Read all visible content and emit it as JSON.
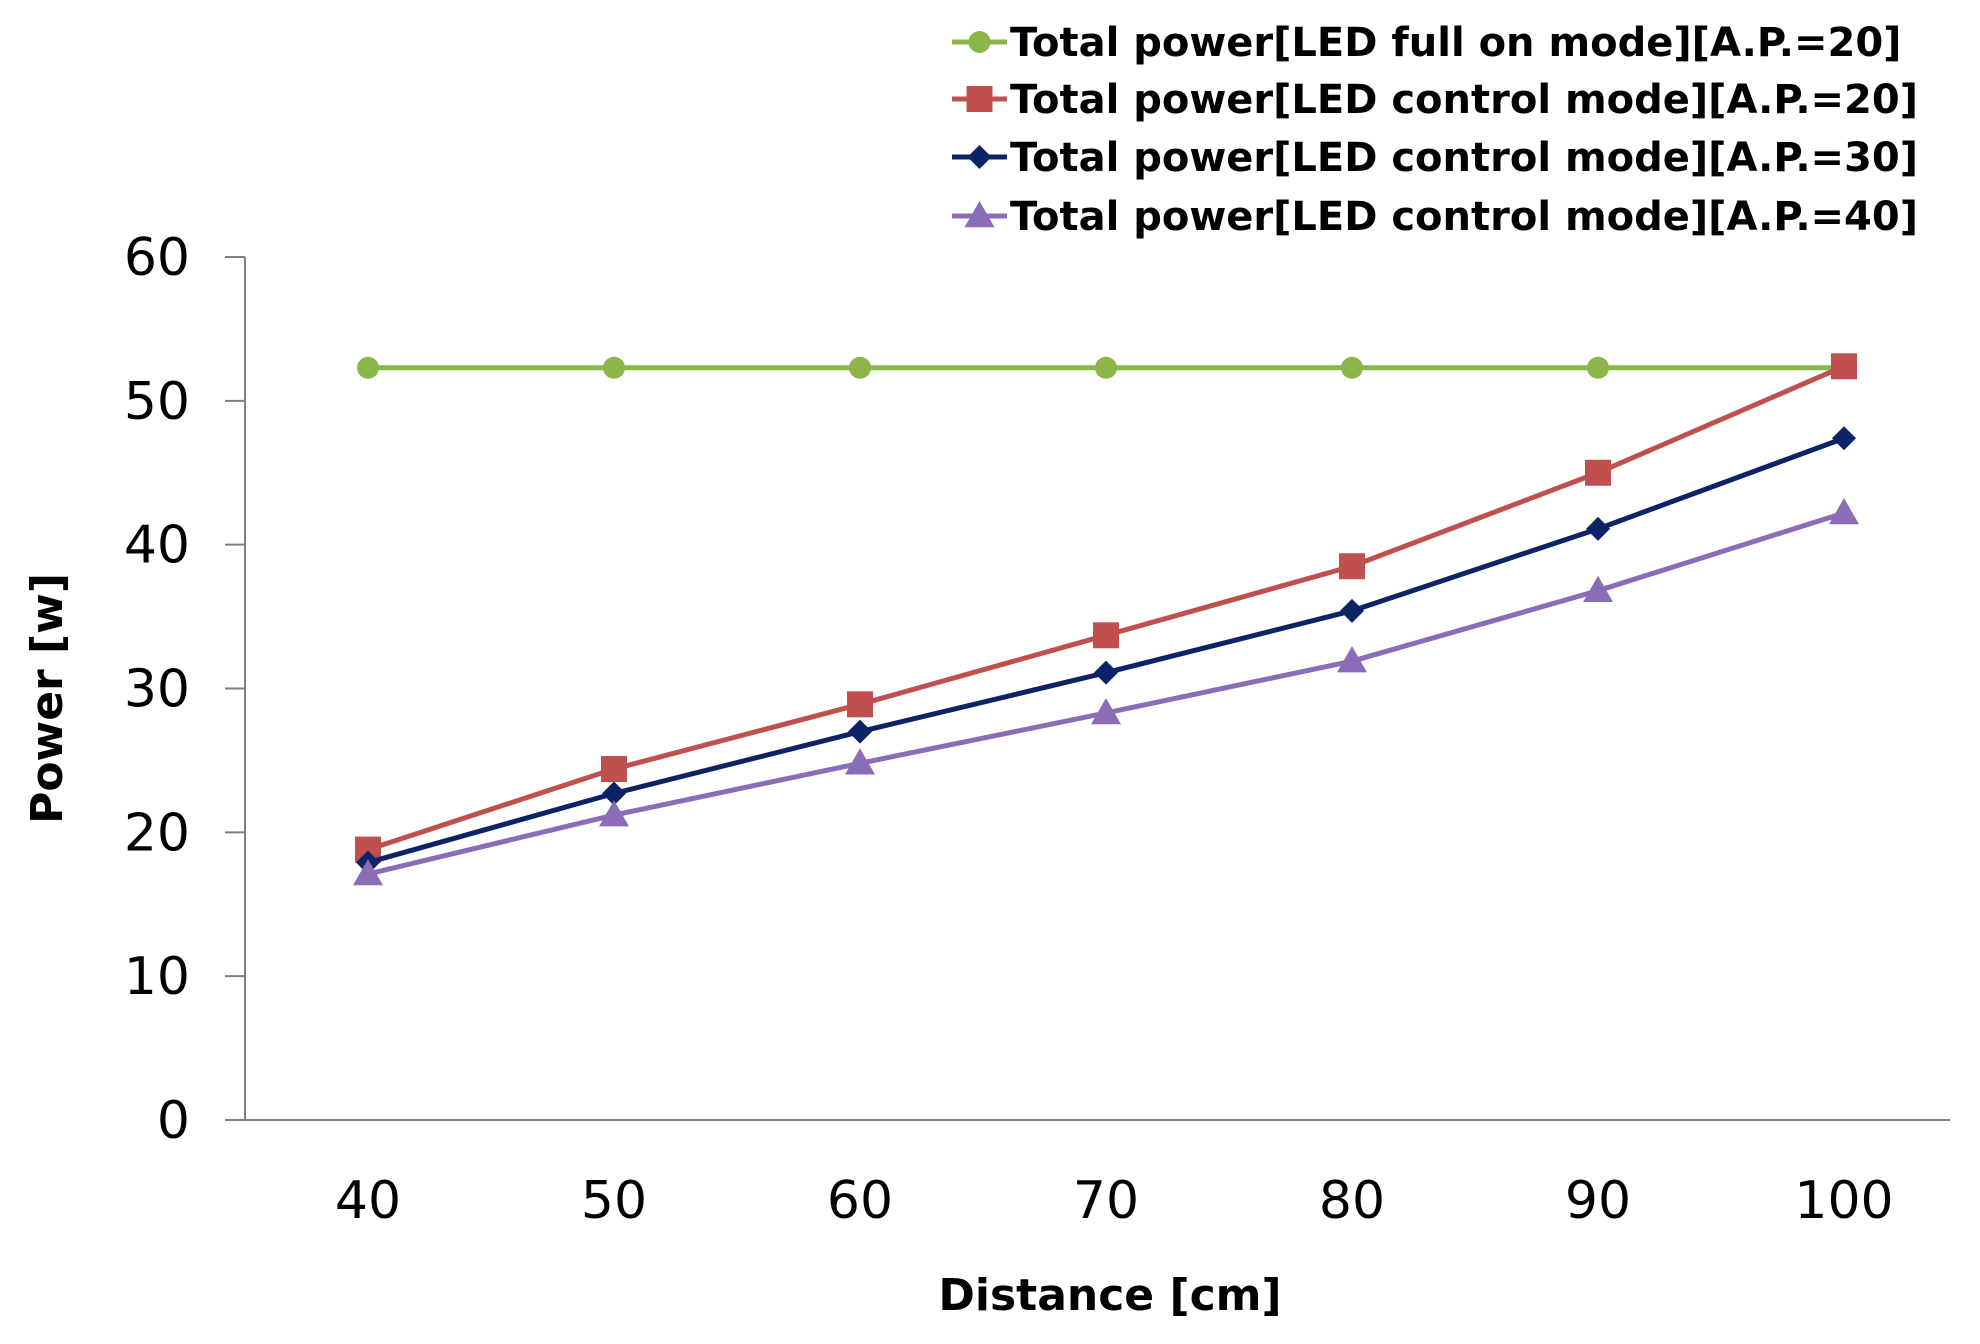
{
  "chart_data": {
    "type": "line",
    "title": "",
    "xlabel": "Distance [cm]",
    "ylabel": "Power [w]",
    "ylim": [
      0,
      60
    ],
    "yticks": [
      0,
      10,
      20,
      30,
      40,
      50,
      60
    ],
    "x": [
      40,
      50,
      60,
      70,
      80,
      90,
      100
    ],
    "x_tick_labels": [
      "40",
      "50",
      "60",
      "70",
      "80",
      "90",
      "100"
    ],
    "y_tick_labels": [
      "0",
      "10",
      "20",
      "30",
      "40",
      "50",
      "60"
    ],
    "grid": false,
    "legend_position": "top-right",
    "series": [
      {
        "name": "Total power[LED full on mode][A.P.=20]",
        "color": "#8DB64A",
        "marker": "circle",
        "values": [
          52.3,
          52.3,
          52.3,
          52.3,
          52.3,
          52.3,
          52.3
        ]
      },
      {
        "name": "Total power[LED control mode][A.P.=20]",
        "color": "#C0504D",
        "marker": "square",
        "values": [
          18.8,
          24.4,
          28.9,
          33.7,
          38.5,
          45.0,
          52.4
        ]
      },
      {
        "name": "Total power[LED control mode][A.P.=30]",
        "color": "#0C2366",
        "marker": "diamond",
        "values": [
          17.9,
          22.7,
          27.0,
          31.1,
          35.4,
          41.1,
          47.4
        ]
      },
      {
        "name": "Total power[LED control mode][A.P.=40]",
        "color": "#8A6DB6",
        "marker": "triangle",
        "values": [
          17.1,
          21.2,
          24.8,
          28.3,
          31.9,
          36.8,
          42.2
        ]
      }
    ]
  }
}
